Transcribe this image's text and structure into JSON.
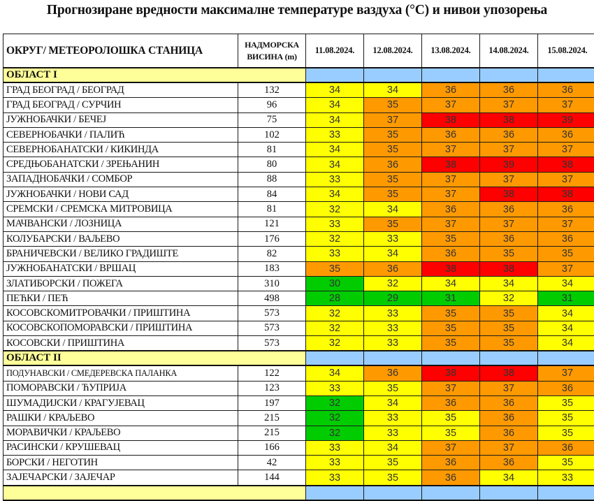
{
  "title": "Прогнозиране вредности максималне температуре ваздуха (°C) и нивои упозорења",
  "header": {
    "station": "ОКРУГ/ МЕТЕОРОЛОШКА СТАНИЦА",
    "altitude_line1": "НАДМОРСКА",
    "altitude_line2": "ВИСИНА  (m)",
    "dates": [
      "11.08.2024.",
      "12.08.2024.",
      "13.08.2024.",
      "14.08.2024.",
      "15.08.2024."
    ]
  },
  "legend_colors": {
    "green": "#00cc00",
    "yellow": "#ffff00",
    "orange": "#ff9900",
    "red": "#ff0000",
    "region_label": "#ffff99",
    "region_blue": "#99ccff"
  },
  "regions": [
    {
      "name": "ОБЛАСТ I",
      "rows": [
        {
          "station": "ГРАД БЕОГРАД / БЕОГРАД",
          "altitude": "132",
          "values": [
            34,
            34,
            36,
            36,
            36
          ],
          "levels": [
            "y",
            "y",
            "o",
            "o",
            "o"
          ]
        },
        {
          "station": "ГРАД БЕОГРАД / СУРЧИН",
          "altitude": "96",
          "values": [
            34,
            35,
            37,
            37,
            37
          ],
          "levels": [
            "y",
            "o",
            "o",
            "o",
            "o"
          ]
        },
        {
          "station": "ЈУЖНОБАЧКИ / БЕЧЕЈ",
          "altitude": "75",
          "values": [
            34,
            37,
            38,
            38,
            39
          ],
          "levels": [
            "y",
            "o",
            "r",
            "r",
            "r"
          ]
        },
        {
          "station": "СЕВЕРНОБАЧКИ / ПАЛИЋ",
          "altitude": "102",
          "values": [
            33,
            35,
            36,
            36,
            36
          ],
          "levels": [
            "y",
            "o",
            "o",
            "o",
            "o"
          ]
        },
        {
          "station": "СЕВЕРНОБАНАТСКИ / КИКИНДА",
          "altitude": "81",
          "values": [
            34,
            35,
            37,
            37,
            37
          ],
          "levels": [
            "y",
            "o",
            "o",
            "o",
            "o"
          ]
        },
        {
          "station": "СРЕДЊОБАНАТСКИ / ЗРЕЊАНИН",
          "altitude": "80",
          "values": [
            34,
            36,
            38,
            39,
            38
          ],
          "levels": [
            "y",
            "o",
            "r",
            "r",
            "r"
          ]
        },
        {
          "station": "ЗАПАДНОБАЧКИ / СОМБОР",
          "altitude": "88",
          "values": [
            33,
            35,
            37,
            37,
            37
          ],
          "levels": [
            "y",
            "o",
            "o",
            "o",
            "o"
          ]
        },
        {
          "station": "ЈУЖНОБАЧКИ / НОВИ САД",
          "altitude": "84",
          "values": [
            34,
            35,
            37,
            38,
            38
          ],
          "levels": [
            "y",
            "o",
            "o",
            "r",
            "r"
          ]
        },
        {
          "station": "СРЕМСКИ / СРЕМСКА МИТРОВИЦА",
          "altitude": "81",
          "values": [
            32,
            34,
            36,
            36,
            36
          ],
          "levels": [
            "y",
            "y",
            "o",
            "o",
            "o"
          ]
        },
        {
          "station": "МАЧВАНСКИ / ЛОЗНИЦА",
          "altitude": "121",
          "values": [
            33,
            35,
            37,
            37,
            37
          ],
          "levels": [
            "y",
            "o",
            "o",
            "o",
            "o"
          ]
        },
        {
          "station": "КОЛУБАРСКИ / ВАЉЕВО",
          "altitude": "176",
          "values": [
            32,
            33,
            35,
            36,
            36
          ],
          "levels": [
            "y",
            "y",
            "o",
            "o",
            "o"
          ]
        },
        {
          "station": "БРАНИЧЕВСКИ / ВЕЛИКО ГРАДИШТЕ",
          "altitude": "82",
          "values": [
            33,
            34,
            36,
            35,
            35
          ],
          "levels": [
            "y",
            "y",
            "o",
            "o",
            "o"
          ]
        },
        {
          "station": "ЈУЖНОБАНАТСКИ / ВРШАЦ",
          "altitude": "183",
          "values": [
            35,
            36,
            38,
            38,
            37
          ],
          "levels": [
            "o",
            "o",
            "r",
            "r",
            "o"
          ]
        },
        {
          "station": "ЗЛАТИБОРСКИ / ПОЖЕГА",
          "altitude": "310",
          "values": [
            30,
            32,
            34,
            34,
            34
          ],
          "levels": [
            "g",
            "y",
            "y",
            "y",
            "y"
          ]
        },
        {
          "station": "ПЕЋКИ / ПЕЋ",
          "altitude": "498",
          "values": [
            28,
            29,
            31,
            32,
            31
          ],
          "levels": [
            "g",
            "g",
            "g",
            "y",
            "g"
          ]
        },
        {
          "station": "КОСОВСКОМИТРОВАЧКИ / ПРИШТИНА",
          "altitude": "573",
          "values": [
            32,
            33,
            35,
            35,
            34
          ],
          "levels": [
            "y",
            "y",
            "o",
            "o",
            "y"
          ]
        },
        {
          "station": "КОСОВСКОПОМОРАВСКИ / ПРИШТИНА",
          "altitude": "573",
          "values": [
            32,
            33,
            35,
            35,
            34
          ],
          "levels": [
            "y",
            "y",
            "o",
            "o",
            "y"
          ]
        },
        {
          "station": "КОСОВСКИ / ПРИШТИНА",
          "altitude": "573",
          "values": [
            32,
            33,
            35,
            35,
            34
          ],
          "levels": [
            "y",
            "y",
            "o",
            "o",
            "y"
          ]
        }
      ]
    },
    {
      "name": "ОБЛАСТ II",
      "rows": [
        {
          "station": "ПОДУНАВСКИ / СМЕДЕРЕВСКА ПАЛАНКА",
          "altitude": "122",
          "values": [
            34,
            36,
            38,
            38,
            37
          ],
          "levels": [
            "y",
            "o",
            "r",
            "r",
            "o"
          ],
          "small": true
        },
        {
          "station": "ПОМОРАВСКИ / ЋУПРИЈА",
          "altitude": "123",
          "values": [
            33,
            35,
            37,
            37,
            36
          ],
          "levels": [
            "y",
            "y",
            "o",
            "o",
            "o"
          ]
        },
        {
          "station": "ШУМАДИЈСКИ / КРАГУЈЕВАЦ",
          "altitude": "197",
          "values": [
            32,
            34,
            36,
            36,
            35
          ],
          "levels": [
            "g",
            "y",
            "o",
            "o",
            "y"
          ]
        },
        {
          "station": "РАШКИ / КРАЉЕВО",
          "altitude": "215",
          "values": [
            32,
            33,
            35,
            36,
            35
          ],
          "levels": [
            "g",
            "y",
            "y",
            "o",
            "y"
          ]
        },
        {
          "station": "МОРАВИЧКИ / КРАЉЕВО",
          "altitude": "215",
          "values": [
            32,
            33,
            35,
            36,
            35
          ],
          "levels": [
            "g",
            "y",
            "y",
            "o",
            "y"
          ]
        },
        {
          "station": "РАСИНСКИ / КРУШЕВАЦ",
          "altitude": "166",
          "values": [
            33,
            34,
            37,
            37,
            36
          ],
          "levels": [
            "y",
            "y",
            "o",
            "o",
            "o"
          ]
        },
        {
          "station": "БОРСКИ / НЕГОТИН",
          "altitude": "42",
          "values": [
            33,
            35,
            36,
            36,
            35
          ],
          "levels": [
            "y",
            "y",
            "o",
            "o",
            "y"
          ]
        },
        {
          "station": "ЗАЈЕЧАРСКИ / ЗАЈЕЧАР",
          "altitude": "144",
          "values": [
            33,
            35,
            36,
            34,
            33
          ],
          "levels": [
            "y",
            "y",
            "o",
            "y",
            "y"
          ]
        }
      ]
    },
    {
      "name": "",
      "rows": []
    }
  ]
}
